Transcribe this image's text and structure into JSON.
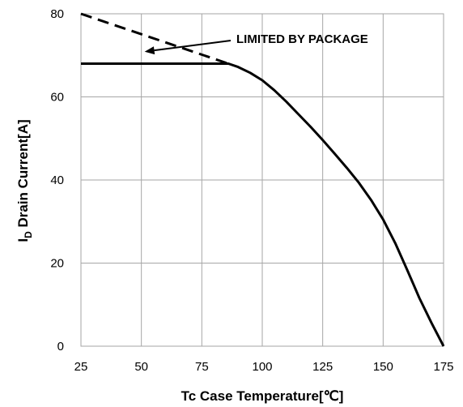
{
  "chart_data": {
    "type": "line",
    "title": "",
    "xlabel": "Tc Case Temperature[℃]",
    "ylabel_main": "I",
    "ylabel_sub": "D",
    "ylabel_rest": " Drain Current[A]",
    "xlim": [
      25,
      175
    ],
    "ylim": [
      0,
      80
    ],
    "x_ticks": [
      25,
      50,
      75,
      100,
      125,
      150,
      175
    ],
    "y_ticks": [
      0,
      20,
      40,
      60,
      80
    ],
    "grid": true,
    "series": [
      {
        "style": "solid",
        "color": "#000000",
        "x": [
          25,
          86,
          90,
          95,
          100,
          105,
          110,
          115,
          120,
          125,
          130,
          135,
          140,
          145,
          150,
          155,
          160,
          165,
          170,
          175
        ],
        "y": [
          68,
          68,
          67.2,
          65.8,
          64.0,
          61.6,
          58.8,
          55.8,
          52.8,
          49.6,
          46.3,
          42.9,
          39.3,
          35.2,
          30.5,
          24.8,
          18.3,
          11.6,
          5.6,
          0
        ]
      },
      {
        "style": "dashed",
        "color": "#000000",
        "x": [
          25,
          86
        ],
        "y": [
          80,
          68
        ]
      }
    ],
    "annotations": [
      {
        "text": "LIMITED BY PACKAGE",
        "arrow_to": [
          50,
          70.5
        ]
      }
    ]
  }
}
